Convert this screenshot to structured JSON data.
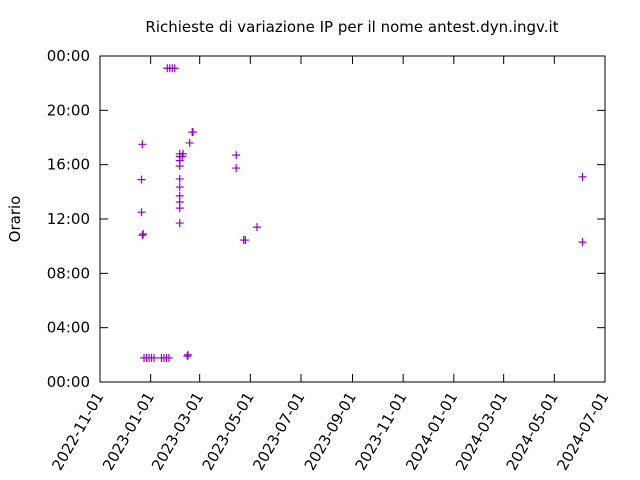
{
  "chart_data": {
    "type": "scatter",
    "title": "Richieste di variazione IP per il nome antest.dyn.ingv.it",
    "y_label": "Orario",
    "color": "#9400d3",
    "xlim": [
      "2022-11-01",
      "2024-07-01"
    ],
    "xticks": [
      "2022-11-01",
      "2023-01-01",
      "2023-03-01",
      "2023-05-01",
      "2023-07-01",
      "2023-09-01",
      "2023-11-01",
      "2024-01-01",
      "2024-03-01",
      "2024-05-01",
      "2024-07-01"
    ],
    "ylim": [
      0,
      24
    ],
    "yticks": [
      {
        "value": 0,
        "label": "00:00"
      },
      {
        "value": 4,
        "label": "04:00"
      },
      {
        "value": 8,
        "label": "08:00"
      },
      {
        "value": 12,
        "label": "12:00"
      },
      {
        "value": 16,
        "label": "16:00"
      },
      {
        "value": 20,
        "label": "20:00"
      },
      {
        "value": 24,
        "label": "00:00"
      }
    ],
    "x": [
      "2022-12-22",
      "2022-12-21",
      "2022-12-21",
      "2022-12-22",
      "2022-12-23",
      "2022-12-24",
      "2022-12-27",
      "2022-12-30",
      "2023-01-02",
      "2023-01-05",
      "2023-01-14",
      "2023-01-17",
      "2023-01-20",
      "2023-01-23",
      "2023-01-21",
      "2023-01-24",
      "2023-01-27",
      "2023-01-30",
      "2023-02-05",
      "2023-02-05",
      "2023-02-05",
      "2023-02-05",
      "2023-02-05",
      "2023-02-05",
      "2023-02-05",
      "2023-02-05",
      "2023-02-05",
      "2023-02-05",
      "2023-02-09",
      "2023-02-08",
      "2023-02-14",
      "2023-02-15",
      "2023-02-17",
      "2023-02-20",
      "2023-02-21",
      "2023-04-14",
      "2023-04-14",
      "2023-04-23",
      "2023-04-25",
      "2023-05-09",
      "2024-06-04",
      "2024-06-04"
    ],
    "values": [
      17.5,
      14.9,
      12.5,
      10.8,
      10.9,
      1.77,
      1.77,
      1.77,
      1.77,
      1.77,
      1.77,
      1.77,
      1.77,
      1.77,
      23.1,
      23.1,
      23.1,
      23.1,
      11.7,
      12.8,
      13.25,
      13.7,
      14.35,
      14.95,
      15.9,
      16.3,
      16.6,
      16.8,
      16.8,
      16.6,
      1.9,
      2.0,
      17.6,
      18.4,
      18.4,
      16.7,
      15.75,
      10.45,
      10.45,
      11.4,
      15.1,
      10.3
    ]
  }
}
